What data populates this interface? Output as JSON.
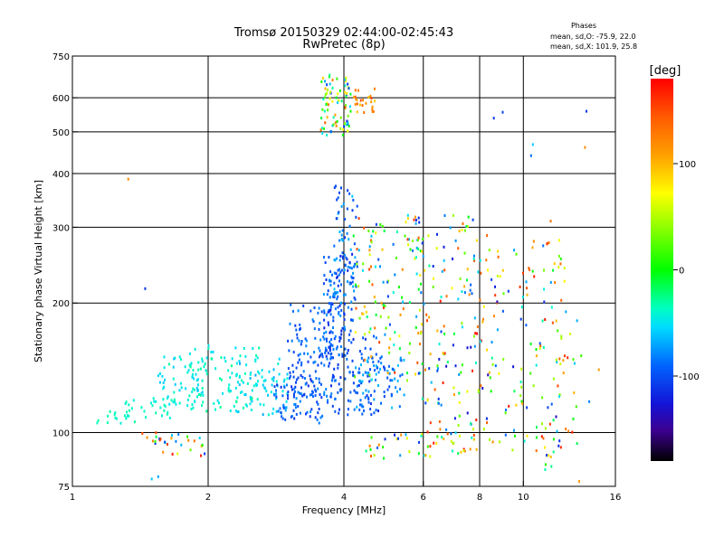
{
  "chart_data": {
    "type": "scatter",
    "title": "Tromsø 20150329 02:44:00-02:45:43",
    "subtitle": "RwPretec (8p)",
    "xlabel": "Frequency [MHz]",
    "ylabel": "Stationary phase Virtual Height [km]",
    "x_scale": "log",
    "y_scale": "log",
    "xlim": [
      1,
      16
    ],
    "ylim": [
      75,
      750
    ],
    "x_ticks": [
      1,
      2,
      4,
      6,
      8,
      10,
      16
    ],
    "x_tick_labels": [
      "1",
      "2",
      "4",
      "6",
      "8",
      "10",
      "16"
    ],
    "y_ticks": [
      75,
      100,
      200,
      300,
      400,
      500,
      600,
      750
    ],
    "y_tick_labels": [
      "75",
      "100",
      "200",
      "300",
      "400",
      "500",
      "600",
      "750"
    ],
    "grid": true,
    "legend": {
      "position": "top-right",
      "title": "Phases",
      "lines": [
        "mean, sd,O: -75.9, 22.0",
        "mean, sd,X: 101.9, 25.8"
      ]
    },
    "colorbar": {
      "label": "[deg]",
      "range": [
        -180,
        180
      ],
      "ticks": [
        100,
        0,
        -100
      ],
      "tick_labels": [
        "100",
        "0",
        "-100"
      ],
      "colormap": "rainbow"
    },
    "point_groups": [
      {
        "f": [
          1.02,
          1.4
        ],
        "h": [
          105,
          112
        ],
        "n": 14,
        "phase": [
          -45,
          -25
        ]
      },
      {
        "f": [
          1.3,
          1.7
        ],
        "h": [
          108,
          122
        ],
        "n": 30,
        "phase": [
          -50,
          -30
        ]
      },
      {
        "f": [
          1.55,
          2.0
        ],
        "h": [
          115,
          150
        ],
        "n": 55,
        "phase": [
          -60,
          -30
        ]
      },
      {
        "f": [
          1.8,
          2.6
        ],
        "h": [
          112,
          160
        ],
        "n": 90,
        "phase": [
          -55,
          -25
        ]
      },
      {
        "f": [
          2.3,
          3.0
        ],
        "h": [
          110,
          150
        ],
        "n": 70,
        "phase": [
          -70,
          -40
        ]
      },
      {
        "f": [
          2.8,
          3.6
        ],
        "h": [
          105,
          135
        ],
        "n": 70,
        "phase": [
          -115,
          -75
        ]
      },
      {
        "f": [
          3.0,
          3.8
        ],
        "h": [
          120,
          200
        ],
        "n": 120,
        "phase": [
          -110,
          -75
        ]
      },
      {
        "f": [
          3.6,
          4.2
        ],
        "h": [
          150,
          260
        ],
        "n": 110,
        "phase": [
          -120,
          -70
        ]
      },
      {
        "f": [
          3.8,
          4.3
        ],
        "h": [
          200,
          380
        ],
        "n": 70,
        "phase": [
          -110,
          -60
        ]
      },
      {
        "f": [
          3.6,
          4.8
        ],
        "h": [
          110,
          175
        ],
        "n": 90,
        "phase": [
          -115,
          -80
        ]
      },
      {
        "f": [
          4.2,
          5.5
        ],
        "h": [
          110,
          150
        ],
        "n": 80,
        "phase": [
          -105,
          -60
        ]
      },
      {
        "f": [
          4.2,
          6.0
        ],
        "h": [
          130,
          320
        ],
        "n": 130,
        "phase": [
          -120,
          160
        ]
      },
      {
        "f": [
          5.8,
          8.5
        ],
        "h": [
          90,
          320
        ],
        "n": 170,
        "phase": [
          -140,
          180
        ]
      },
      {
        "f": [
          8.5,
          12.5
        ],
        "h": [
          88,
          280
        ],
        "n": 110,
        "phase": [
          -140,
          170
        ]
      },
      {
        "f": [
          11.0,
          13.5
        ],
        "h": [
          80,
          200
        ],
        "n": 35,
        "phase": [
          -120,
          180
        ]
      },
      {
        "f": [
          1.4,
          2.0
        ],
        "h": [
          88,
          100
        ],
        "n": 30,
        "phase": [
          -120,
          170
        ]
      },
      {
        "f": [
          4.4,
          8.0
        ],
        "h": [
          87,
          100
        ],
        "n": 35,
        "phase": [
          -120,
          170
        ]
      },
      {
        "f": [
          3.55,
          4.15
        ],
        "h": [
          490,
          690
        ],
        "n": 80,
        "phase": [
          -130,
          150
        ]
      },
      {
        "f": [
          4.2,
          4.7
        ],
        "h": [
          545,
          640
        ],
        "n": 25,
        "phase": [
          90,
          150
        ]
      }
    ],
    "outliers": [
      {
        "f": 1.33,
        "h": 388,
        "phase": 120
      },
      {
        "f": 1.45,
        "h": 216,
        "phase": -110
      },
      {
        "f": 8.6,
        "h": 538,
        "phase": -110
      },
      {
        "f": 9.0,
        "h": 555,
        "phase": -105
      },
      {
        "f": 10.5,
        "h": 467,
        "phase": -60
      },
      {
        "f": 10.4,
        "h": 440,
        "phase": -90
      },
      {
        "f": 13.8,
        "h": 558,
        "phase": -110
      },
      {
        "f": 13.7,
        "h": 460,
        "phase": 120
      },
      {
        "f": 11.5,
        "h": 310,
        "phase": 130
      },
      {
        "f": 11.3,
        "h": 275,
        "phase": 160
      },
      {
        "f": 14.7,
        "h": 140,
        "phase": 110
      },
      {
        "f": 14.0,
        "h": 118,
        "phase": -80
      },
      {
        "f": 1.5,
        "h": 78,
        "phase": -60
      },
      {
        "f": 1.55,
        "h": 79,
        "phase": -70
      },
      {
        "f": 13.3,
        "h": 77,
        "phase": 110
      }
    ]
  }
}
